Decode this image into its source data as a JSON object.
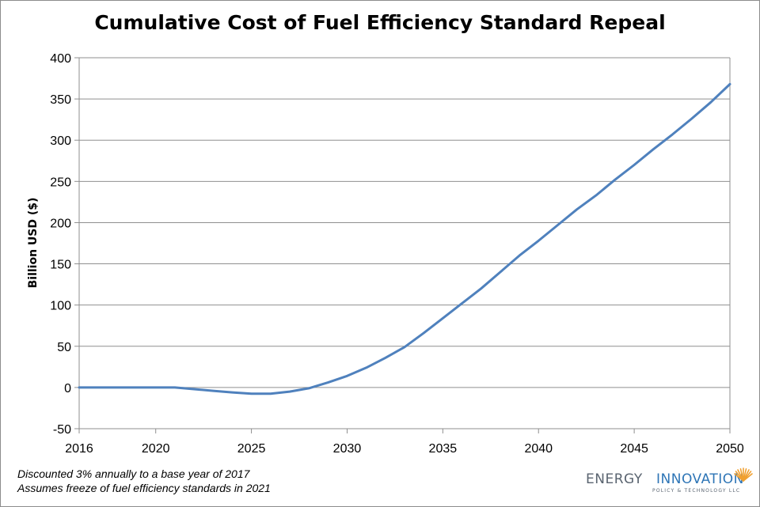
{
  "chart_data": {
    "type": "line",
    "title": "Cumulative Cost of Fuel Efficiency Standard Repeal",
    "xlabel": "",
    "ylabel": "Billion USD ($)",
    "xlim": [
      2016,
      2050
    ],
    "ylim": [
      -50,
      400
    ],
    "x_ticks": [
      2016,
      2020,
      2025,
      2030,
      2035,
      2040,
      2045,
      2050
    ],
    "y_ticks": [
      -50,
      0,
      50,
      100,
      150,
      200,
      250,
      300,
      350,
      400
    ],
    "grid": "horizontal",
    "legend": "none",
    "series": [
      {
        "color": "#4f81bd",
        "x": [
          2016,
          2017,
          2018,
          2019,
          2020,
          2021,
          2022,
          2023,
          2024,
          2025,
          2026,
          2027,
          2028,
          2029,
          2030,
          2031,
          2032,
          2033,
          2034,
          2035,
          2036,
          2037,
          2038,
          2039,
          2040,
          2041,
          2042,
          2043,
          2044,
          2045,
          2046,
          2047,
          2048,
          2049,
          2050
        ],
        "y": [
          0,
          0,
          0,
          0,
          0,
          0,
          -2,
          -4,
          -6,
          -7.5,
          -7.5,
          -5,
          -1,
          6,
          14,
          24,
          36,
          49,
          66,
          84,
          102,
          120,
          140,
          160,
          178,
          197,
          216,
          233,
          252,
          270,
          289,
          307,
          326,
          346,
          368
        ]
      }
    ]
  },
  "notes": [
    "Discounted 3% annually to a base year of 2017",
    "Assumes freeze of fuel efficiency standards in 2021"
  ],
  "logo": {
    "word1": "ENERGY",
    "word2": "INNOVATION",
    "subtitle": "POLICY & TECHNOLOGY LLC"
  }
}
